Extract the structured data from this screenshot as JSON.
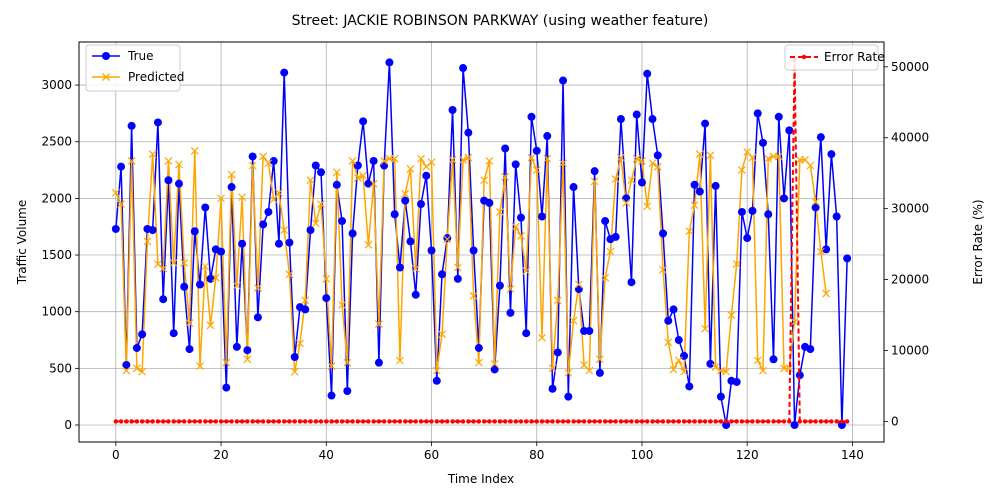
{
  "chart_data": {
    "type": "line",
    "title": "Street: JACKIE ROBINSON PARKWAY (using weather feature)",
    "xlabel": "Time Index",
    "ylabel": "Traffic Volume",
    "y2label": "Error Rate (%)",
    "xlim": [
      -7,
      146
    ],
    "ylim": [
      -150,
      3380
    ],
    "y2lim": [
      -2900,
      53500
    ],
    "xticks": [
      0,
      20,
      40,
      60,
      80,
      100,
      120,
      140
    ],
    "yticks": [
      0,
      500,
      1000,
      1500,
      2000,
      2500,
      3000
    ],
    "y2ticks": [
      0,
      10000,
      20000,
      30000,
      40000,
      50000
    ],
    "grid": true,
    "legend_left": "top-left",
    "legend_right": "top-right",
    "series": [
      {
        "name": "True",
        "color": "#0000ff",
        "marker": "circle",
        "axis": "left",
        "values": [
          1730,
          2280,
          530,
          2640,
          680,
          800,
          1730,
          1720,
          2670,
          1110,
          2160,
          810,
          2130,
          1220,
          670,
          1710,
          1240,
          1920,
          1290,
          1550,
          1530,
          330,
          2100,
          690,
          1600,
          660,
          2370,
          950,
          1770,
          1880,
          2330,
          1600,
          3110,
          1610,
          600,
          1040,
          1020,
          1720,
          2290,
          2230,
          1120,
          260,
          2120,
          1800,
          300,
          1690,
          2290,
          2680,
          2130,
          2330,
          550,
          2290,
          3200,
          1860,
          1390,
          1980,
          1620,
          1150,
          1950,
          2200,
          1540,
          390,
          1330,
          1650,
          2780,
          1290,
          3150,
          2580,
          1540,
          680,
          1980,
          1960,
          490,
          1230,
          2440,
          990,
          2300,
          1830,
          810,
          2720,
          2420,
          1840,
          2550,
          320,
          640,
          3040,
          250,
          2100,
          1200,
          830,
          830,
          2240,
          460,
          1800,
          1640,
          1660,
          2700,
          2000,
          1260,
          2740,
          2140,
          3100,
          2700,
          2380,
          1690,
          920,
          1020,
          750,
          610,
          340,
          2120,
          2060,
          2660,
          540,
          2110,
          250,
          0,
          390,
          380,
          1880,
          1650,
          1890,
          2750,
          2490,
          1860,
          580,
          2720,
          2000,
          2600,
          0,
          440,
          690,
          670,
          1920,
          2540,
          1550,
          2390,
          1840,
          0,
          1470
        ]
      },
      {
        "name": "Predicted",
        "color": "#ffa500",
        "marker": "x",
        "axis": "left",
        "values": [
          2050,
          1950,
          480,
          2330,
          500,
          470,
          1620,
          2390,
          1420,
          1380,
          2330,
          1430,
          2300,
          1430,
          900,
          2420,
          520,
          1400,
          880,
          1300,
          2000,
          550,
          2210,
          1230,
          2010,
          580,
          2290,
          1210,
          2370,
          2310,
          1990,
          2050,
          1720,
          1330,
          470,
          720,
          1100,
          2160,
          1780,
          1950,
          1290,
          520,
          2230,
          1060,
          550,
          2330,
          2180,
          2200,
          1590,
          2130,
          890,
          2330,
          2350,
          2350,
          570,
          2040,
          2260,
          1380,
          2350,
          2280,
          2320,
          480,
          800,
          1640,
          2340,
          1390,
          2340,
          2360,
          1140,
          550,
          2160,
          2330,
          540,
          1880,
          2190,
          1200,
          1750,
          1670,
          1360,
          2360,
          2250,
          770,
          2350,
          500,
          1100,
          2310,
          460,
          920,
          1240,
          530,
          480,
          2150,
          580,
          1300,
          1530,
          2170,
          2360,
          1960,
          2160,
          2350,
          2330,
          1930,
          2310,
          2280,
          1370,
          730,
          490,
          570,
          470,
          1710,
          1940,
          2390,
          850,
          2380,
          510,
          480,
          470,
          970,
          1420,
          2250,
          2410,
          2360,
          570,
          480,
          2350,
          2370,
          2370,
          500,
          500,
          910,
          2340,
          2340,
          2290,
          1970,
          1530,
          1160
        ]
      },
      {
        "name": "Error Rate",
        "color": "#ff0000",
        "marker": "dot",
        "line": "dashed",
        "axis": "right",
        "values": [
          0,
          0,
          0,
          0,
          0,
          0,
          0,
          0,
          0,
          0,
          0,
          0,
          0,
          0,
          0,
          0,
          0,
          0,
          0,
          0,
          0,
          0,
          0,
          0,
          0,
          0,
          0,
          0,
          0,
          0,
          0,
          0,
          0,
          0,
          0,
          0,
          0,
          0,
          0,
          0,
          0,
          0,
          0,
          0,
          0,
          0,
          0,
          0,
          0,
          0,
          0,
          0,
          0,
          0,
          0,
          0,
          0,
          0,
          0,
          0,
          0,
          0,
          0,
          0,
          0,
          0,
          0,
          0,
          0,
          0,
          0,
          0,
          0,
          0,
          0,
          0,
          0,
          0,
          0,
          0,
          0,
          0,
          0,
          0,
          0,
          0,
          0,
          0,
          0,
          0,
          0,
          0,
          0,
          0,
          0,
          0,
          0,
          0,
          0,
          0,
          0,
          0,
          0,
          0,
          0,
          0,
          0,
          0,
          0,
          0,
          0,
          0,
          0,
          0,
          0,
          0,
          0,
          0,
          0,
          0,
          0,
          0,
          0,
          0,
          0,
          0,
          0,
          0,
          0,
          0,
          0,
          0,
          0,
          0,
          0,
          0,
          0,
          0,
          0,
          0
        ],
        "spikes": [
          {
            "x": 129,
            "value": 51000
          }
        ]
      }
    ]
  }
}
